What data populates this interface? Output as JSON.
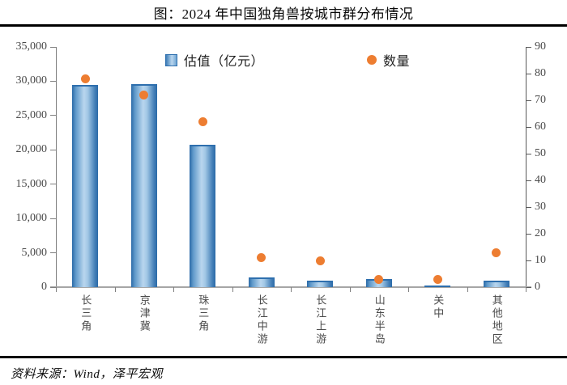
{
  "title": "图：2024 年中国独角兽按城市群分布情况",
  "source_note": "资料来源：Wind，泽平宏观",
  "legend": {
    "bar_label": "估值（亿元）",
    "dot_label": "数量"
  },
  "colors": {
    "bar_edge": "#2b6aa7",
    "bar_light": "#b9d6ee",
    "bar_top": "#2e6fae",
    "dot": "#ed7d31",
    "axis_line": "#7f7f7f",
    "axis_line_dark": "#595959",
    "x_axis_line": "#a6a6a6",
    "tick_label": "#4a4a4a",
    "rule": "#000000"
  },
  "chart_data": {
    "type": "bar",
    "subtype": "dual-axis bar + scatter points",
    "title": "图：2024 年中国独角兽按城市群分布情况",
    "categories": [
      "长三角",
      "京津冀",
      "珠三角",
      "长江中游",
      "长江上游",
      "山东半岛",
      "关中",
      "其他地区"
    ],
    "series": [
      {
        "name": "估值（亿元）",
        "type": "bar",
        "axis": "left",
        "values": [
          29500,
          29600,
          20700,
          1400,
          1000,
          1200,
          200,
          1000
        ]
      },
      {
        "name": "数量",
        "type": "scatter",
        "axis": "right",
        "values": [
          78,
          72,
          62,
          11,
          10,
          3,
          3,
          13
        ]
      }
    ],
    "left_axis": {
      "label": "",
      "min": 0,
      "max": 35000,
      "step": 5000,
      "tick_labels": [
        "0",
        "5,000",
        "10,000",
        "15,000",
        "20,000",
        "25,000",
        "30,000",
        "35,000"
      ]
    },
    "right_axis": {
      "label": "",
      "min": 0,
      "max": 90,
      "step": 10,
      "tick_labels": [
        "0",
        "10",
        "20",
        "30",
        "40",
        "50",
        "60",
        "70",
        "80",
        "90"
      ]
    },
    "grid": false,
    "legend_position": "top-center-inside"
  }
}
